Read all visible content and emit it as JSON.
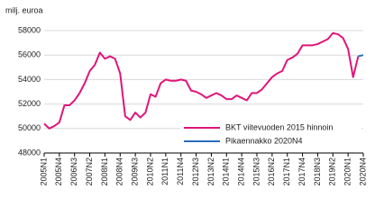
{
  "chart_data": {
    "type": "line",
    "y_label": "milj. euroa",
    "categories": [
      "2005N1",
      null,
      null,
      "2005N4",
      null,
      null,
      "2006N3",
      null,
      null,
      "2007N2",
      null,
      null,
      "2008N1",
      null,
      null,
      "2008N4",
      null,
      null,
      "2009N3",
      null,
      null,
      "2010N2",
      null,
      null,
      "2011N1",
      null,
      null,
      "2011N4",
      null,
      null,
      "2012N3",
      null,
      null,
      "2013N2",
      null,
      null,
      "2014N1",
      null,
      null,
      "2014N4",
      null,
      null,
      "2015N3",
      null,
      null,
      "2016N2",
      null,
      null,
      "2017N1",
      null,
      null,
      "2017N4",
      null,
      null,
      "2018N3",
      null,
      null,
      "2019N2",
      null,
      null,
      "2020N1",
      null,
      null,
      "2020N4"
    ],
    "series": [
      {
        "name": "BKT viitevuoden 2015 hinnoin",
        "color": "#e0157a",
        "values": [
          50400,
          50000,
          50200,
          50500,
          51900,
          51900,
          52300,
          52900,
          53700,
          54700,
          55200,
          56200,
          55700,
          55900,
          55700,
          54500,
          51000,
          50700,
          51300,
          50900,
          51300,
          52800,
          52600,
          53700,
          54000,
          53900,
          53900,
          54000,
          53900,
          53100,
          53000,
          52800,
          52500,
          52700,
          52900,
          52700,
          52400,
          52400,
          52700,
          52500,
          52300,
          52900,
          52900,
          53200,
          53700,
          54200,
          54500,
          54700,
          55600,
          55800,
          56100,
          56800,
          56800,
          56800,
          56900,
          57100,
          57300,
          57800,
          57700,
          57400,
          56500,
          54200,
          55900,
          null
        ]
      },
      {
        "name": "Pikaennakko 2020N4",
        "color": "#2a6ebb",
        "values": [
          null,
          null,
          null,
          null,
          null,
          null,
          null,
          null,
          null,
          null,
          null,
          null,
          null,
          null,
          null,
          null,
          null,
          null,
          null,
          null,
          null,
          null,
          null,
          null,
          null,
          null,
          null,
          null,
          null,
          null,
          null,
          null,
          null,
          null,
          null,
          null,
          null,
          null,
          null,
          null,
          null,
          null,
          null,
          null,
          null,
          null,
          null,
          null,
          null,
          null,
          null,
          null,
          null,
          null,
          null,
          null,
          null,
          null,
          null,
          null,
          null,
          null,
          55900,
          56000
        ]
      }
    ],
    "ylim": [
      48000,
      58000
    ],
    "yticks": [
      48000,
      50000,
      52000,
      54000,
      56000,
      58000
    ],
    "grid": true,
    "legend_position": "lower right"
  }
}
